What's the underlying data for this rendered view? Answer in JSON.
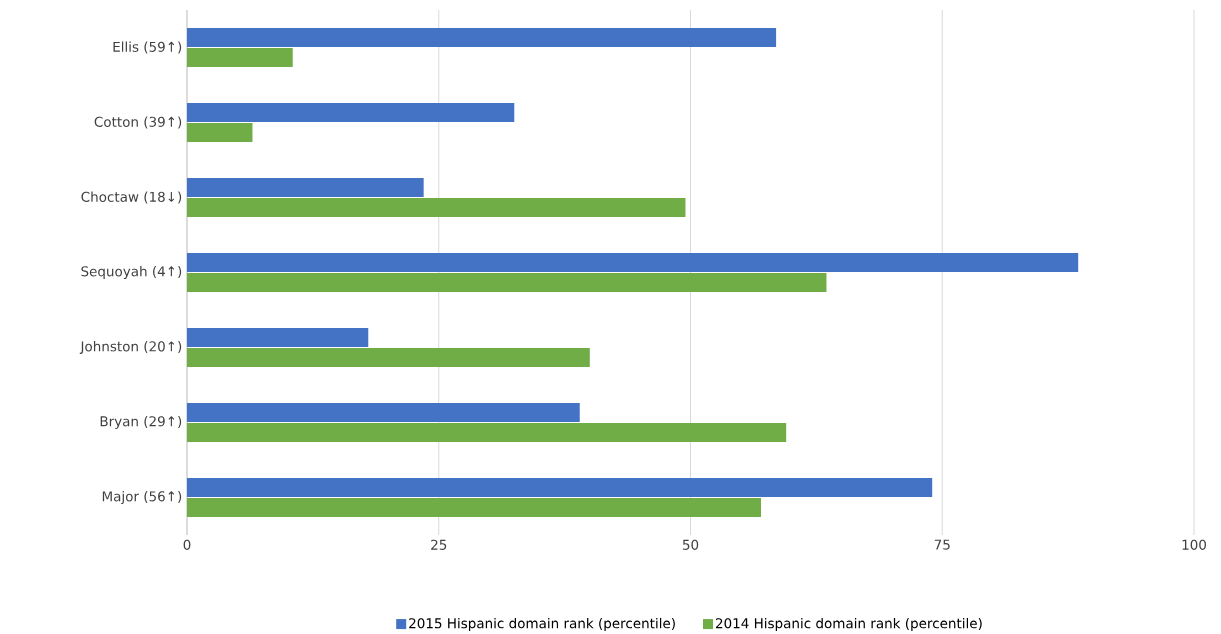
{
  "chart_data": {
    "type": "bar",
    "orientation": "horizontal",
    "categories": [
      "Ellis (59↑)",
      "Cotton (39↑)",
      "Choctaw (18↓)",
      "Sequoyah (4↑)",
      "Johnston (20↑)",
      "Bryan (29↑)",
      "Major (56↑)"
    ],
    "series": [
      {
        "name": "2015 Hispanic domain rank (percentile)",
        "color": "#4472c4",
        "values": [
          58.5,
          32.5,
          23.5,
          88.5,
          18,
          39,
          74
        ]
      },
      {
        "name": "2014 Hispanic domain rank (percentile)",
        "color": "#70ad47",
        "values": [
          10.5,
          6.5,
          49.5,
          63.5,
          40,
          59.5,
          57
        ]
      }
    ],
    "xlim": [
      0,
      100
    ],
    "xticks": [
      0,
      25,
      50,
      75,
      100
    ],
    "grid": "x",
    "legend": "bottom"
  }
}
